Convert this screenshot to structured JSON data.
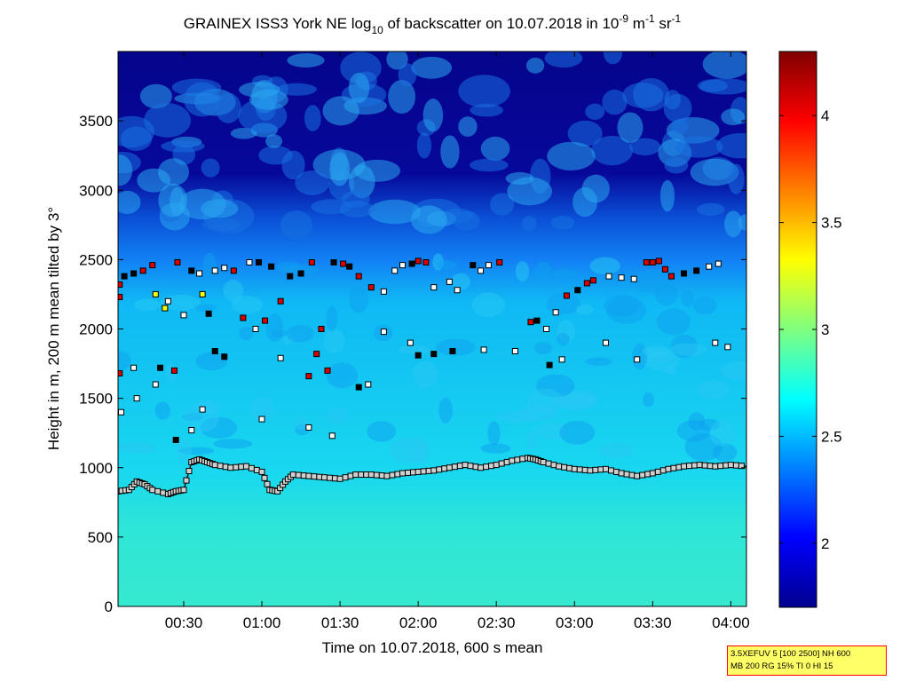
{
  "figure": {
    "title_main": "GRAINEX ISS3 York NE log",
    "title_sub10": "10",
    "title_mid": " of backscatter on 10.07.2018 in 10",
    "title_sup_m9": "-9",
    "title_unit_m": " m",
    "title_sup_m1a": "-1",
    "title_unit_sr": " sr",
    "title_sup_m1b": "-1",
    "info_line1": "3.5XEFUV 5 [100 2500] NH 600",
    "info_line2": "MB 200 RG 15% TI 0 HI 15"
  },
  "colors": {
    "background_low": "#36e8d0",
    "cloud_edge_red": "#dd0000",
    "marker_white": "#ffffff",
    "marker_yellow": "#ffff00",
    "marker_black": "#000000"
  },
  "chart_data": {
    "type": "heatmap",
    "xlabel": "Time on 10.07.2018, 600 s mean",
    "ylabel": "Height in m, 200 m mean tilted by 3°",
    "xlim_hours": [
      0.08,
      4.1
    ],
    "ylim": [
      0,
      4000
    ],
    "x_ticks": [
      {
        "label": "00:30",
        "hours": 0.5
      },
      {
        "label": "01:00",
        "hours": 1.0
      },
      {
        "label": "01:30",
        "hours": 1.5
      },
      {
        "label": "02:00",
        "hours": 2.0
      },
      {
        "label": "02:30",
        "hours": 2.5
      },
      {
        "label": "03:00",
        "hours": 3.0
      },
      {
        "label": "03:30",
        "hours": 3.5
      },
      {
        "label": "04:00",
        "hours": 4.0
      }
    ],
    "y_ticks": [
      0,
      500,
      1000,
      1500,
      2000,
      2500,
      3000,
      3500
    ],
    "colorbar": {
      "colormap": "jet",
      "clim": [
        1.7,
        4.3
      ],
      "ticks": [
        2,
        2.5,
        3,
        3.5,
        4
      ]
    },
    "backscatter_layers": [
      {
        "height_range": [
          0,
          950
        ],
        "value": 2.65
      },
      {
        "height_range": [
          950,
          2400
        ],
        "value": 2.45
      },
      {
        "height_range": [
          2400,
          2750
        ],
        "value": 2.2
      },
      {
        "height_range": [
          2750,
          4000
        ],
        "value": 1.75
      }
    ],
    "mixing_layer_height": {
      "x_hours": [
        0.08,
        0.15,
        0.2,
        0.25,
        0.3,
        0.4,
        0.45,
        0.5,
        0.55,
        0.6,
        0.65,
        0.7,
        0.8,
        0.9,
        1.0,
        1.05,
        1.1,
        1.15,
        1.2,
        1.3,
        1.4,
        1.5,
        1.6,
        1.7,
        1.8,
        1.9,
        2.0,
        2.1,
        2.2,
        2.3,
        2.4,
        2.5,
        2.6,
        2.7,
        2.75,
        2.8,
        2.9,
        3.0,
        3.1,
        3.2,
        3.3,
        3.4,
        3.5,
        3.6,
        3.7,
        3.8,
        3.9,
        4.0,
        4.1
      ],
      "height_m": [
        830,
        840,
        900,
        880,
        840,
        810,
        830,
        840,
        1040,
        1060,
        1040,
        1020,
        1000,
        1010,
        970,
        840,
        830,
        900,
        950,
        940,
        930,
        920,
        950,
        950,
        940,
        960,
        970,
        980,
        1000,
        1020,
        1000,
        1020,
        1050,
        1070,
        1060,
        1040,
        1010,
        990,
        980,
        990,
        960,
        940,
        960,
        990,
        1010,
        1020,
        1010,
        1020,
        1010
      ]
    },
    "cloud_markers": [
      {
        "hours": 0.09,
        "height_m": 2320,
        "type": "red"
      },
      {
        "hours": 0.09,
        "height_m": 2230,
        "type": "red"
      },
      {
        "hours": 0.09,
        "height_m": 1680,
        "type": "red"
      },
      {
        "hours": 0.1,
        "height_m": 1400,
        "type": "white"
      },
      {
        "hours": 0.12,
        "height_m": 2380,
        "type": "black"
      },
      {
        "hours": 0.18,
        "height_m": 2400,
        "type": "black"
      },
      {
        "hours": 0.24,
        "height_m": 2420,
        "type": "red"
      },
      {
        "hours": 0.3,
        "height_m": 2460,
        "type": "red"
      },
      {
        "hours": 0.32,
        "height_m": 2250,
        "type": "yellow"
      },
      {
        "hours": 0.35,
        "height_m": 1720,
        "type": "black"
      },
      {
        "hours": 0.38,
        "height_m": 2150,
        "type": "yellow"
      },
      {
        "hours": 0.4,
        "height_m": 2200,
        "type": "white"
      },
      {
        "hours": 0.44,
        "height_m": 1700,
        "type": "red"
      },
      {
        "hours": 0.46,
        "height_m": 2480,
        "type": "red"
      },
      {
        "hours": 0.5,
        "height_m": 2100,
        "type": "white"
      },
      {
        "hours": 0.55,
        "height_m": 2420,
        "type": "black"
      },
      {
        "hours": 0.6,
        "height_m": 2400,
        "type": "white"
      },
      {
        "hours": 0.62,
        "height_m": 2250,
        "type": "yellow"
      },
      {
        "hours": 0.7,
        "height_m": 2420,
        "type": "white"
      },
      {
        "hours": 0.76,
        "height_m": 2440,
        "type": "white"
      },
      {
        "hours": 0.82,
        "height_m": 2420,
        "type": "red"
      },
      {
        "hours": 0.88,
        "height_m": 2080,
        "type": "red"
      },
      {
        "hours": 0.92,
        "height_m": 2480,
        "type": "white"
      },
      {
        "hours": 0.98,
        "height_m": 2480,
        "type": "black"
      },
      {
        "hours": 1.02,
        "height_m": 2060,
        "type": "red"
      },
      {
        "hours": 1.06,
        "height_m": 2450,
        "type": "black"
      },
      {
        "hours": 1.12,
        "height_m": 2200,
        "type": "red"
      },
      {
        "hours": 1.18,
        "height_m": 2380,
        "type": "black"
      },
      {
        "hours": 1.25,
        "height_m": 2400,
        "type": "black"
      },
      {
        "hours": 1.3,
        "height_m": 1660,
        "type": "red"
      },
      {
        "hours": 1.32,
        "height_m": 2480,
        "type": "red"
      },
      {
        "hours": 1.35,
        "height_m": 1820,
        "type": "red"
      },
      {
        "hours": 1.38,
        "height_m": 2000,
        "type": "red"
      },
      {
        "hours": 1.42,
        "height_m": 1700,
        "type": "red"
      },
      {
        "hours": 1.46,
        "height_m": 2480,
        "type": "black"
      },
      {
        "hours": 1.52,
        "height_m": 2470,
        "type": "red"
      },
      {
        "hours": 1.56,
        "height_m": 2450,
        "type": "black"
      },
      {
        "hours": 1.62,
        "height_m": 2380,
        "type": "red"
      },
      {
        "hours": 1.7,
        "height_m": 2300,
        "type": "red"
      },
      {
        "hours": 1.78,
        "height_m": 2270,
        "type": "white"
      },
      {
        "hours": 1.85,
        "height_m": 2420,
        "type": "white"
      },
      {
        "hours": 1.9,
        "height_m": 2460,
        "type": "white"
      },
      {
        "hours": 1.96,
        "height_m": 2470,
        "type": "black"
      },
      {
        "hours": 2.0,
        "height_m": 2490,
        "type": "red"
      },
      {
        "hours": 2.05,
        "height_m": 2480,
        "type": "red"
      },
      {
        "hours": 2.1,
        "height_m": 2300,
        "type": "white"
      },
      {
        "hours": 2.2,
        "height_m": 2340,
        "type": "white"
      },
      {
        "hours": 2.25,
        "height_m": 2280,
        "type": "white"
      },
      {
        "hours": 2.35,
        "height_m": 2460,
        "type": "black"
      },
      {
        "hours": 2.4,
        "height_m": 2420,
        "type": "white"
      },
      {
        "hours": 2.45,
        "height_m": 2460,
        "type": "white"
      },
      {
        "hours": 2.52,
        "height_m": 2480,
        "type": "red"
      },
      {
        "hours": 2.72,
        "height_m": 2050,
        "type": "red"
      },
      {
        "hours": 2.76,
        "height_m": 2060,
        "type": "black"
      },
      {
        "hours": 2.82,
        "height_m": 2000,
        "type": "white"
      },
      {
        "hours": 2.88,
        "height_m": 2120,
        "type": "white"
      },
      {
        "hours": 2.95,
        "height_m": 2240,
        "type": "red"
      },
      {
        "hours": 3.02,
        "height_m": 2280,
        "type": "black"
      },
      {
        "hours": 3.08,
        "height_m": 2330,
        "type": "red"
      },
      {
        "hours": 3.12,
        "height_m": 2350,
        "type": "red"
      },
      {
        "hours": 3.22,
        "height_m": 2380,
        "type": "white"
      },
      {
        "hours": 3.3,
        "height_m": 2370,
        "type": "white"
      },
      {
        "hours": 3.38,
        "height_m": 2360,
        "type": "white"
      },
      {
        "hours": 3.46,
        "height_m": 2480,
        "type": "red"
      },
      {
        "hours": 3.5,
        "height_m": 2480,
        "type": "red"
      },
      {
        "hours": 3.54,
        "height_m": 2490,
        "type": "red"
      },
      {
        "hours": 3.58,
        "height_m": 2430,
        "type": "red"
      },
      {
        "hours": 3.62,
        "height_m": 2380,
        "type": "red"
      },
      {
        "hours": 3.7,
        "height_m": 2400,
        "type": "black"
      },
      {
        "hours": 3.78,
        "height_m": 2420,
        "type": "black"
      },
      {
        "hours": 3.86,
        "height_m": 2450,
        "type": "white"
      },
      {
        "hours": 3.92,
        "height_m": 2470,
        "type": "white"
      },
      {
        "hours": 3.2,
        "height_m": 1900,
        "type": "white"
      },
      {
        "hours": 3.4,
        "height_m": 1780,
        "type": "white"
      },
      {
        "hours": 3.9,
        "height_m": 1900,
        "type": "white"
      },
      {
        "hours": 3.98,
        "height_m": 1870,
        "type": "white"
      },
      {
        "hours": 2.84,
        "height_m": 1740,
        "type": "black"
      },
      {
        "hours": 2.92,
        "height_m": 1780,
        "type": "white"
      },
      {
        "hours": 2.0,
        "height_m": 1810,
        "type": "black"
      },
      {
        "hours": 2.1,
        "height_m": 1820,
        "type": "black"
      },
      {
        "hours": 1.95,
        "height_m": 1900,
        "type": "white"
      },
      {
        "hours": 1.78,
        "height_m": 1980,
        "type": "white"
      },
      {
        "hours": 1.62,
        "height_m": 1580,
        "type": "black"
      },
      {
        "hours": 1.68,
        "height_m": 1600,
        "type": "white"
      },
      {
        "hours": 1.3,
        "height_m": 1290,
        "type": "white"
      },
      {
        "hours": 1.45,
        "height_m": 1230,
        "type": "white"
      },
      {
        "hours": 1.0,
        "height_m": 1350,
        "type": "white"
      },
      {
        "hours": 0.7,
        "height_m": 1840,
        "type": "black"
      },
      {
        "hours": 0.76,
        "height_m": 1800,
        "type": "black"
      },
      {
        "hours": 0.66,
        "height_m": 2110,
        "type": "black"
      },
      {
        "hours": 0.62,
        "height_m": 1420,
        "type": "white"
      },
      {
        "hours": 0.55,
        "height_m": 1270,
        "type": "white"
      },
      {
        "hours": 0.45,
        "height_m": 1200,
        "type": "black"
      },
      {
        "hours": 0.2,
        "height_m": 1500,
        "type": "white"
      },
      {
        "hours": 0.18,
        "height_m": 1720,
        "type": "white"
      },
      {
        "hours": 0.32,
        "height_m": 1600,
        "type": "white"
      },
      {
        "hours": 0.96,
        "height_m": 2000,
        "type": "white"
      },
      {
        "hours": 1.12,
        "height_m": 1790,
        "type": "white"
      },
      {
        "hours": 2.22,
        "height_m": 1840,
        "type": "black"
      },
      {
        "hours": 2.42,
        "height_m": 1850,
        "type": "white"
      },
      {
        "hours": 2.62,
        "height_m": 1840,
        "type": "white"
      }
    ]
  }
}
